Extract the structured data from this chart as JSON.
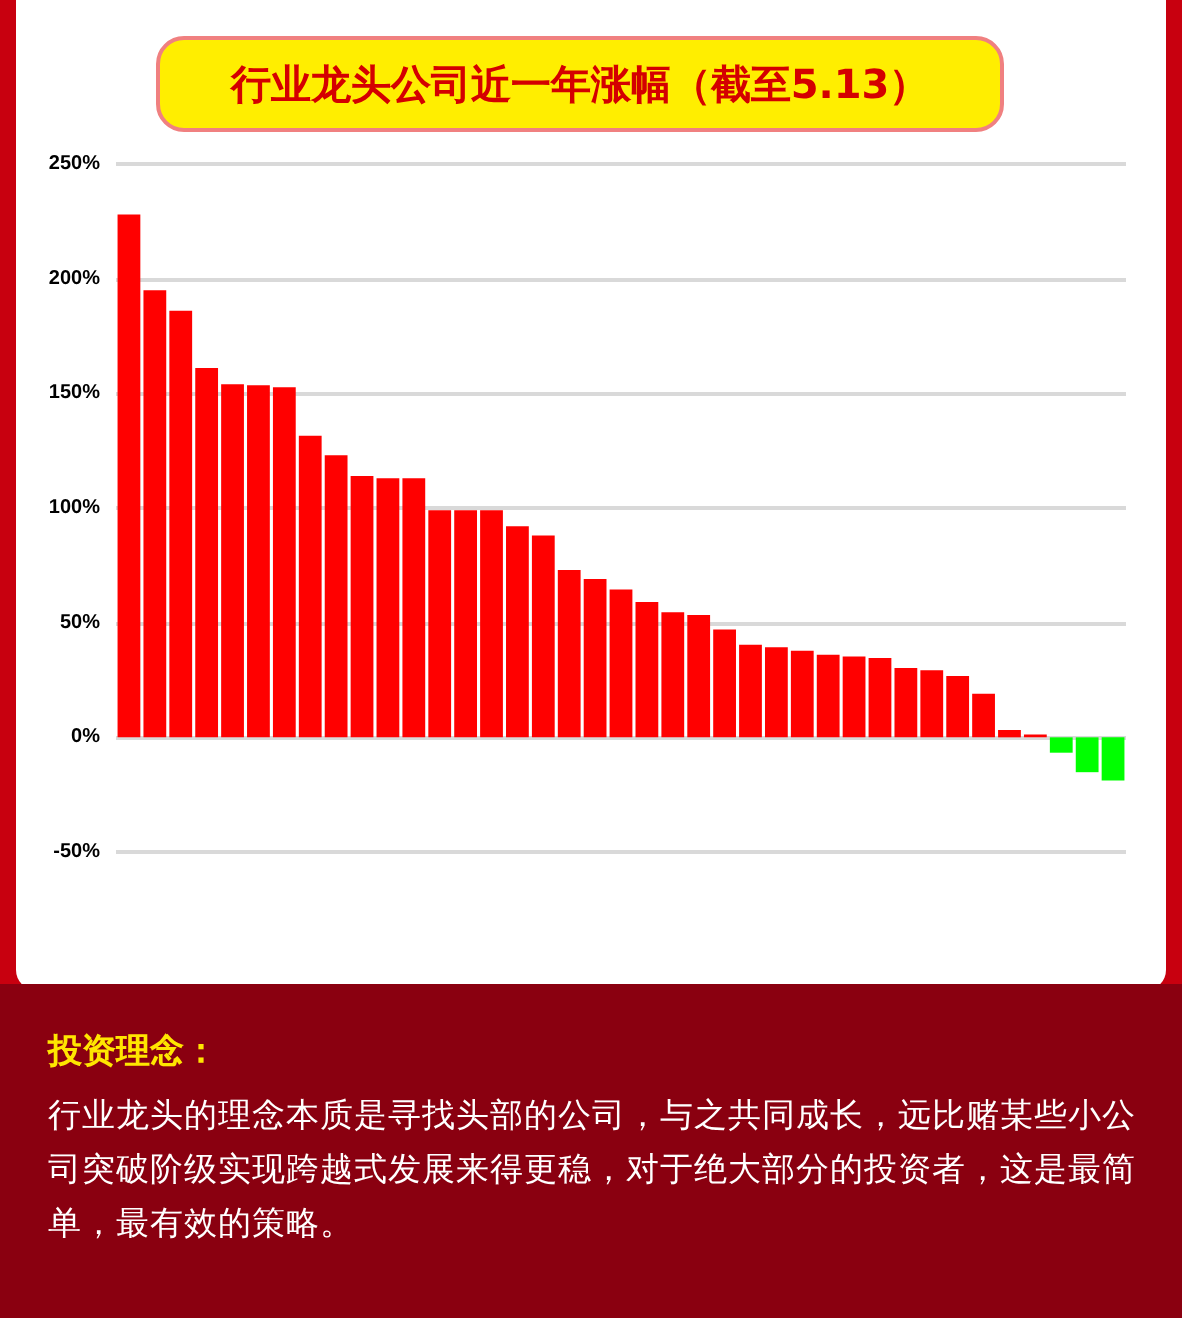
{
  "chart_data": {
    "type": "bar",
    "title": "行业龙头公司近一年涨幅（截至5.13）",
    "categories": [
      null,
      null,
      null,
      null,
      null,
      null,
      null,
      null,
      null,
      null,
      null,
      null,
      null,
      null,
      null,
      null,
      null,
      null,
      null,
      null,
      null,
      null,
      null,
      null,
      null,
      null,
      null,
      null,
      null,
      null,
      null,
      null,
      null,
      null,
      null,
      null,
      null,
      null,
      null
    ],
    "values": [
      228,
      195,
      186,
      161,
      154,
      153.5,
      152.6,
      131.5,
      123,
      114,
      113,
      113,
      99,
      99,
      99,
      92,
      88,
      73,
      69,
      64.5,
      59,
      54.5,
      53.3,
      47,
      40.4,
      39.3,
      37.8,
      36,
      35.2,
      34.6,
      30.2,
      29.3,
      26.7,
      19,
      3.2,
      1.2,
      -6.7,
      -15.2,
      -18.8
    ],
    "colors": [
      "#ff0000",
      "#ff0000",
      "#ff0000",
      "#ff0000",
      "#ff0000",
      "#ff0000",
      "#ff0000",
      "#ff0000",
      "#ff0000",
      "#ff0000",
      "#ff0000",
      "#ff0000",
      "#ff0000",
      "#ff0000",
      "#ff0000",
      "#ff0000",
      "#ff0000",
      "#ff0000",
      "#ff0000",
      "#ff0000",
      "#ff0000",
      "#ff0000",
      "#ff0000",
      "#ff0000",
      "#ff0000",
      "#ff0000",
      "#ff0000",
      "#ff0000",
      "#ff0000",
      "#ff0000",
      "#ff0000",
      "#ff0000",
      "#ff0000",
      "#ff0000",
      "#ff0000",
      "#ff0000",
      "#00ff00",
      "#00ff00",
      "#00ff00"
    ],
    "ylim": [
      -50,
      250
    ],
    "yticks": [
      {
        "value": -50,
        "label": "-50%"
      },
      {
        "value": 0,
        "label": "0%"
      },
      {
        "value": 50,
        "label": "50%"
      },
      {
        "value": 100,
        "label": "100%"
      },
      {
        "value": 150,
        "label": "150%"
      },
      {
        "value": 200,
        "label": "200%"
      },
      {
        "value": 250,
        "label": "250%"
      }
    ],
    "grid": "y",
    "annotations": [
      "投资理念：",
      "行业龙头的理念本质是寻找头部的公司，与之共同成长，远比赌某些小公司突破阶级实现跨越式发展来得更稳，对于绝大部分的投资者，这是最简单，最有效的策略。"
    ]
  }
}
